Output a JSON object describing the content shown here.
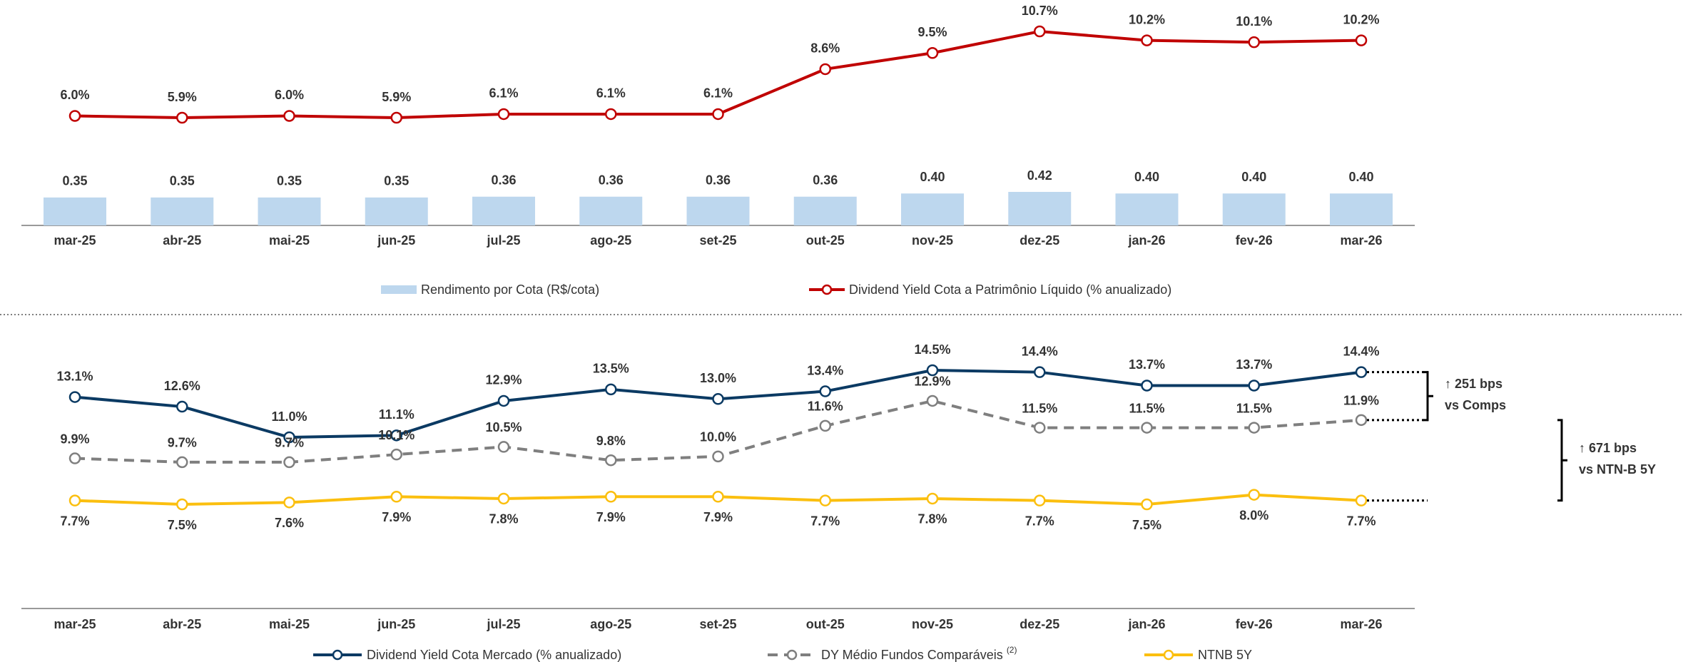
{
  "chart_data": [
    {
      "type": "combo",
      "categories": [
        "mar-25",
        "abr-25",
        "mai-25",
        "jun-25",
        "jul-25",
        "ago-25",
        "set-25",
        "out-25",
        "nov-25",
        "dez-25",
        "jan-26",
        "fev-26",
        "mar-26"
      ],
      "series": [
        {
          "name": "Rendimento por Cota (R$/cota)",
          "type": "bar",
          "color": "#bdd7ee",
          "values": [
            0.35,
            0.35,
            0.35,
            0.35,
            0.36,
            0.36,
            0.36,
            0.36,
            0.4,
            0.42,
            0.4,
            0.4,
            0.4
          ],
          "value_labels": [
            "0.35",
            "0.35",
            "0.35",
            "0.35",
            "0.36",
            "0.36",
            "0.36",
            "0.36",
            "0.40",
            "0.42",
            "0.40",
            "0.40",
            "0.40"
          ]
        },
        {
          "name": "Dividend Yield Cota a Patrimônio Líquido (% anualizado)",
          "type": "line",
          "color": "#c00000",
          "values": [
            6.0,
            5.9,
            6.0,
            5.9,
            6.1,
            6.1,
            6.1,
            8.6,
            9.5,
            10.7,
            10.2,
            10.1,
            10.2
          ],
          "value_labels": [
            "6.0%",
            "5.9%",
            "6.0%",
            "5.9%",
            "6.1%",
            "6.1%",
            "6.1%",
            "8.6%",
            "9.5%",
            "10.7%",
            "10.2%",
            "10.1%",
            "10.2%"
          ]
        }
      ]
    },
    {
      "type": "line",
      "categories": [
        "mar-25",
        "abr-25",
        "mai-25",
        "jun-25",
        "jul-25",
        "ago-25",
        "set-25",
        "out-25",
        "nov-25",
        "dez-25",
        "jan-26",
        "fev-26",
        "mar-26"
      ],
      "series": [
        {
          "name": "Dividend Yield Cota Mercado (% anualizado)",
          "color": "#0b3a63",
          "style": "solid",
          "values": [
            13.1,
            12.6,
            11.0,
            11.1,
            12.9,
            13.5,
            13.0,
            13.4,
            14.5,
            14.4,
            13.7,
            13.7,
            14.4
          ],
          "value_labels": [
            "13.1%",
            "12.6%",
            "11.0%",
            "11.1%",
            "12.9%",
            "13.5%",
            "13.0%",
            "13.4%",
            "14.5%",
            "14.4%",
            "13.7%",
            "13.7%",
            "14.4%"
          ]
        },
        {
          "name": "DY Médio Fundos Comparáveis",
          "note": "(2)",
          "color": "#7f7f7f",
          "style": "dashed",
          "values": [
            9.9,
            9.7,
            9.7,
            10.1,
            10.5,
            9.8,
            10.0,
            11.6,
            12.9,
            11.5,
            11.5,
            11.5,
            11.9
          ],
          "value_labels": [
            "9.9%",
            "9.7%",
            "9.7%",
            "10.1%",
            "10.5%",
            "9.8%",
            "10.0%",
            "11.6%",
            "12.9%",
            "11.5%",
            "11.5%",
            "11.5%",
            "11.9%"
          ]
        },
        {
          "name": "NTNB 5Y",
          "color": "#fbbf0f",
          "style": "solid",
          "values": [
            7.7,
            7.5,
            7.6,
            7.9,
            7.8,
            7.9,
            7.9,
            7.7,
            7.8,
            7.7,
            7.5,
            8.0,
            7.7
          ],
          "value_labels": [
            "7.7%",
            "7.5%",
            "7.6%",
            "7.9%",
            "7.8%",
            "7.9%",
            "7.9%",
            "7.7%",
            "7.8%",
            "7.7%",
            "7.5%",
            "8.0%",
            "7.7%"
          ]
        }
      ],
      "annotations": [
        {
          "title": "↑ 251 bps",
          "text": "vs Comps",
          "color": "#00b050"
        },
        {
          "title": "↑ 671 bps",
          "text": "vs NTN-B 5Y",
          "color": "#00b050"
        }
      ]
    }
  ]
}
